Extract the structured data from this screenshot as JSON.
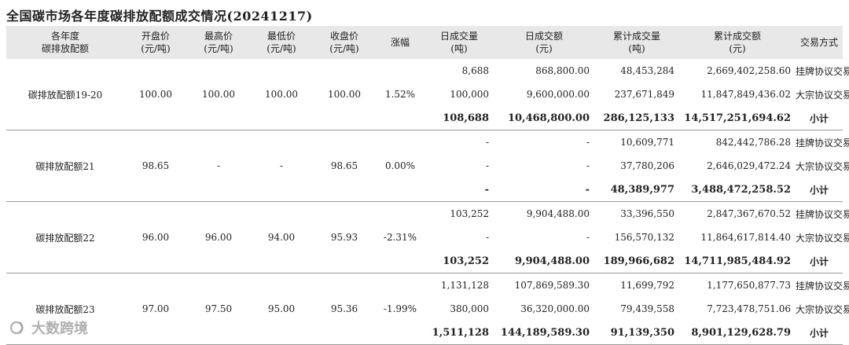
{
  "title": "全国碳市场各年度碳排放配额成交情况(20241217)",
  "headers": {
    "name": "各年度\n碳排放配额",
    "open": "开盘价\n(元/吨)",
    "high": "最高价\n(元/吨)",
    "low": "最低价\n(元/吨)",
    "close": "收盘价\n(元/吨)",
    "change": "涨幅",
    "day_volume": "日成交量\n(吨)",
    "day_amount": "日成交额\n(元)",
    "cum_volume": "累计成交量\n(吨)",
    "cum_amount": "累计成交额\n(元)",
    "mode": "交易方式"
  },
  "groups": [
    {
      "name": "碳排放配额19-20",
      "open": "100.00",
      "high": "100.00",
      "low": "100.00",
      "close": "100.00",
      "change": "1.52%",
      "rows": [
        {
          "day_volume": "8,688",
          "day_amount": "868,800.00",
          "cum_volume": "48,453,284",
          "cum_amount": "2,669,402,258.60",
          "mode": "挂牌协议交易"
        },
        {
          "day_volume": "100,000",
          "day_amount": "9,600,000.00",
          "cum_volume": "237,671,849",
          "cum_amount": "11,847,849,436.02",
          "mode": "大宗协议交易"
        },
        {
          "day_volume": "108,688",
          "day_amount": "10,468,800.00",
          "cum_volume": "286,125,133",
          "cum_amount": "14,517,251,694.62",
          "mode": "小计"
        }
      ]
    },
    {
      "name": "碳排放配额21",
      "open": "98.65",
      "high": "-",
      "low": "-",
      "close": "98.65",
      "change": "0.00%",
      "rows": [
        {
          "day_volume": "-",
          "day_amount": "-",
          "cum_volume": "10,609,771",
          "cum_amount": "842,442,786.28",
          "mode": "挂牌协议交易"
        },
        {
          "day_volume": "-",
          "day_amount": "-",
          "cum_volume": "37,780,206",
          "cum_amount": "2,646,029,472.24",
          "mode": "大宗协议交易"
        },
        {
          "day_volume": "-",
          "day_amount": "-",
          "cum_volume": "48,389,977",
          "cum_amount": "3,488,472,258.52",
          "mode": "小计"
        }
      ]
    },
    {
      "name": "碳排放配额22",
      "open": "96.00",
      "high": "96.00",
      "low": "94.00",
      "close": "95.93",
      "change": "-2.31%",
      "rows": [
        {
          "day_volume": "103,252",
          "day_amount": "9,904,488.00",
          "cum_volume": "33,396,550",
          "cum_amount": "2,847,367,670.52",
          "mode": "挂牌协议交易"
        },
        {
          "day_volume": "-",
          "day_amount": "-",
          "cum_volume": "156,570,132",
          "cum_amount": "11,864,617,814.40",
          "mode": "大宗协议交易"
        },
        {
          "day_volume": "103,252",
          "day_amount": "9,904,488.00",
          "cum_volume": "189,966,682",
          "cum_amount": "14,711,985,484.92",
          "mode": "小计"
        }
      ]
    },
    {
      "name": "碳排放配额23",
      "open": "97.00",
      "high": "97.50",
      "low": "95.00",
      "close": "95.36",
      "change": "-1.99%",
      "rows": [
        {
          "day_volume": "1,131,128",
          "day_amount": "107,869,589.30",
          "cum_volume": "11,699,792",
          "cum_amount": "1,177,650,877.73",
          "mode": "挂牌协议交易"
        },
        {
          "day_volume": "380,000",
          "day_amount": "36,320,000.00",
          "cum_volume": "79,439,558",
          "cum_amount": "7,723,478,751.06",
          "mode": "大宗协议交易"
        },
        {
          "day_volume": "1,511,128",
          "day_amount": "144,189,589.30",
          "cum_volume": "91,139,350",
          "cum_amount": "8,901,129,628.79",
          "mode": "小计"
        }
      ]
    }
  ],
  "watermark": "大数跨境"
}
